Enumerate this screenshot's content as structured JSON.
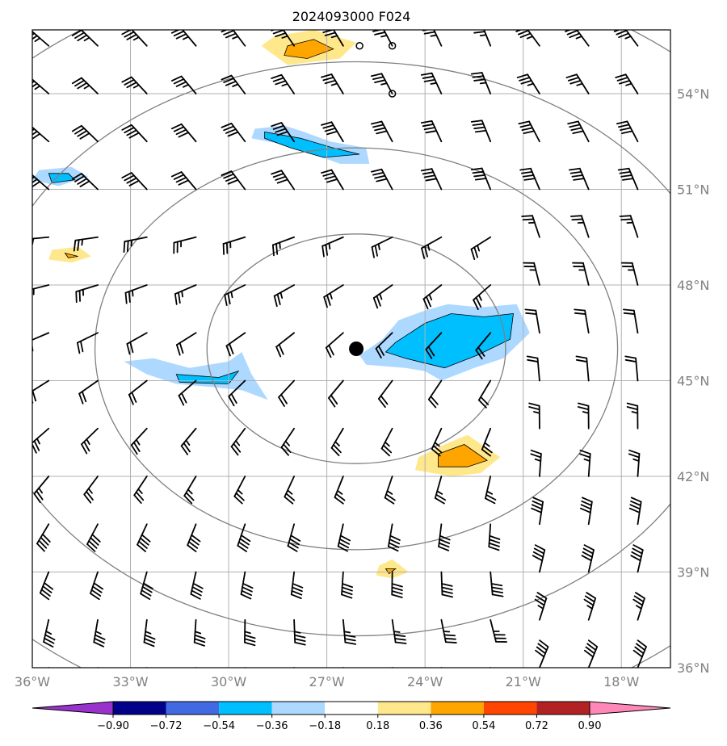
{
  "chart_data": {
    "type": "map",
    "title": "2024093000 F024",
    "extent": {
      "lon": [
        -36,
        -16.5
      ],
      "lat": [
        36,
        56
      ]
    },
    "lat_ticks": [
      {
        "value": 54,
        "label": "54°N"
      },
      {
        "value": 51,
        "label": "51°N"
      },
      {
        "value": 48,
        "label": "48°N"
      },
      {
        "value": 45,
        "label": "45°N"
      },
      {
        "value": 42,
        "label": "42°N"
      },
      {
        "value": 39,
        "label": "39°N"
      },
      {
        "value": 36,
        "label": "36°N"
      }
    ],
    "lon_ticks": [
      {
        "value": -36,
        "label": "36°W"
      },
      {
        "value": -33,
        "label": "33°W"
      },
      {
        "value": -30,
        "label": "30°W"
      },
      {
        "value": -27,
        "label": "27°W"
      },
      {
        "value": -24,
        "label": "24°W"
      },
      {
        "value": -21,
        "label": "21°W"
      },
      {
        "value": -18,
        "label": "18°W"
      }
    ],
    "center": {
      "lon": -26.1,
      "lat": 46.0
    },
    "range_rings_radius_deg_lat": [
      3.6,
      6.3,
      9.0,
      12.0
    ],
    "colorbar": {
      "levels": [
        -0.9,
        -0.72,
        -0.54,
        -0.36,
        -0.18,
        0.18,
        0.36,
        0.54,
        0.72,
        0.9
      ],
      "labels": [
        "−0.90",
        "−0.72",
        "−0.54",
        "−0.36",
        "−0.18",
        "0.18",
        "0.36",
        "0.54",
        "0.72",
        "0.90"
      ],
      "colors": [
        "#9932cc",
        "#00008b",
        "#4169e1",
        "#00bfff",
        "#add8ff",
        "#ffffff",
        "#ffe88c",
        "#ffa500",
        "#ff4500",
        "#b22222",
        "#ff88b8"
      ]
    },
    "shaded_regions": [
      {
        "name": "top-orange",
        "sign": "positive",
        "points": [
          [
            -28.6,
            55.8
          ],
          [
            -27.4,
            56.0
          ],
          [
            -26.1,
            55.6
          ],
          [
            -26.6,
            55.1
          ],
          [
            -28.2,
            54.9
          ],
          [
            -29.0,
            55.5
          ]
        ],
        "inner": [
          [
            -28.2,
            55.5
          ],
          [
            -27.4,
            55.7
          ],
          [
            -26.8,
            55.4
          ],
          [
            -27.6,
            55.1
          ],
          [
            -28.3,
            55.2
          ]
        ]
      },
      {
        "name": "upper-blue-band",
        "sign": "negative",
        "points": [
          [
            -29.2,
            52.9
          ],
          [
            -28.3,
            53.0
          ],
          [
            -27.7,
            52.8
          ],
          [
            -26.9,
            52.5
          ],
          [
            -25.8,
            52.3
          ],
          [
            -25.7,
            51.8
          ],
          [
            -26.6,
            51.8
          ],
          [
            -27.4,
            52.1
          ],
          [
            -28.3,
            52.4
          ],
          [
            -29.3,
            52.6
          ]
        ],
        "inner": [
          [
            -28.9,
            52.8
          ],
          [
            -27.8,
            52.6
          ],
          [
            -26.8,
            52.3
          ],
          [
            -26.0,
            52.1
          ],
          [
            -27.1,
            52.0
          ],
          [
            -28.1,
            52.3
          ],
          [
            -28.9,
            52.6
          ]
        ]
      },
      {
        "name": "west-blue-blob",
        "sign": "negative",
        "points": [
          [
            -35.8,
            51.6
          ],
          [
            -34.8,
            51.7
          ],
          [
            -34.3,
            51.4
          ],
          [
            -35.2,
            51.1
          ],
          [
            -36.0,
            51.3
          ]
        ],
        "inner": [
          [
            -35.5,
            51.5
          ],
          [
            -34.9,
            51.5
          ],
          [
            -34.7,
            51.3
          ],
          [
            -35.4,
            51.2
          ]
        ]
      },
      {
        "name": "west-yellow-blob",
        "sign": "positive",
        "points": [
          [
            -35.4,
            49.1
          ],
          [
            -34.6,
            49.2
          ],
          [
            -34.2,
            48.9
          ],
          [
            -34.8,
            48.7
          ],
          [
            -35.5,
            48.8
          ]
        ],
        "inner": [
          [
            -35.0,
            49.0
          ],
          [
            -34.6,
            48.9
          ],
          [
            -34.9,
            48.85
          ]
        ]
      },
      {
        "name": "mid-west-blue-band",
        "sign": "negative",
        "points": [
          [
            -33.2,
            45.6
          ],
          [
            -32.3,
            45.7
          ],
          [
            -31.2,
            45.4
          ],
          [
            -30.0,
            45.6
          ],
          [
            -29.6,
            45.9
          ],
          [
            -29.3,
            45.2
          ],
          [
            -28.8,
            44.4
          ],
          [
            -29.6,
            44.7
          ],
          [
            -30.5,
            44.8
          ],
          [
            -31.6,
            44.9
          ],
          [
            -32.5,
            45.2
          ]
        ],
        "inner": [
          [
            -31.6,
            45.2
          ],
          [
            -30.3,
            45.1
          ],
          [
            -29.7,
            45.3
          ],
          [
            -30.0,
            44.9
          ],
          [
            -31.5,
            44.95
          ]
        ]
      },
      {
        "name": "east-blue-blob",
        "sign": "negative",
        "points": [
          [
            -25.3,
            46.3
          ],
          [
            -24.8,
            46.9
          ],
          [
            -24.0,
            47.2
          ],
          [
            -23.3,
            47.4
          ],
          [
            -22.3,
            47.3
          ],
          [
            -21.2,
            47.4
          ],
          [
            -20.8,
            46.5
          ],
          [
            -21.6,
            45.7
          ],
          [
            -22.5,
            45.4
          ],
          [
            -23.5,
            45.0
          ],
          [
            -24.0,
            45.3
          ],
          [
            -24.6,
            45.4
          ],
          [
            -25.8,
            45.5
          ],
          [
            -26.0,
            45.8
          ]
        ],
        "inner": [
          [
            -24.9,
            46.2
          ],
          [
            -24.0,
            46.8
          ],
          [
            -23.2,
            47.1
          ],
          [
            -22.2,
            47.0
          ],
          [
            -21.3,
            47.1
          ],
          [
            -21.4,
            46.3
          ],
          [
            -22.4,
            45.8
          ],
          [
            -23.4,
            45.4
          ],
          [
            -24.6,
            45.7
          ],
          [
            -25.2,
            45.9
          ]
        ]
      },
      {
        "name": "east-orange-blob",
        "sign": "positive",
        "points": [
          [
            -24.2,
            42.6
          ],
          [
            -23.4,
            43.0
          ],
          [
            -22.7,
            43.3
          ],
          [
            -21.7,
            42.6
          ],
          [
            -22.3,
            42.1
          ],
          [
            -23.2,
            42.0
          ],
          [
            -24.3,
            42.2
          ]
        ],
        "inner": [
          [
            -23.6,
            42.7
          ],
          [
            -22.8,
            43.0
          ],
          [
            -22.1,
            42.5
          ],
          [
            -22.7,
            42.3
          ],
          [
            -23.6,
            42.3
          ]
        ]
      },
      {
        "name": "south-yellow-blob",
        "sign": "positive",
        "points": [
          [
            -25.4,
            39.2
          ],
          [
            -25.0,
            39.4
          ],
          [
            -24.5,
            39.0
          ],
          [
            -25.0,
            38.8
          ],
          [
            -25.5,
            38.9
          ]
        ],
        "inner": [
          [
            -25.2,
            39.1
          ],
          [
            -24.9,
            39.1
          ],
          [
            -25.1,
            38.95
          ]
        ]
      }
    ],
    "small_markers": [
      {
        "name": "coast-ring-1",
        "lon": -26.0,
        "lat": 55.5
      },
      {
        "name": "coast-ring-2",
        "lon": -25.0,
        "lat": 55.5
      },
      {
        "name": "coast-ring-3",
        "lon": -25.0,
        "lat": 54.0
      }
    ],
    "wind_barbs": {
      "lons": [
        -35.5,
        -34.0,
        -32.5,
        -31.0,
        -29.5,
        -28.0,
        -26.5,
        -25.0,
        -23.5,
        -22.0,
        -20.5,
        -19.0,
        -17.5
      ],
      "lats": [
        55.5,
        54.0,
        52.5,
        51.0,
        49.5,
        48.0,
        46.5,
        45.0,
        43.5,
        42.0,
        40.5,
        39.0,
        37.5,
        36.0
      ],
      "units": "knots"
    }
  }
}
